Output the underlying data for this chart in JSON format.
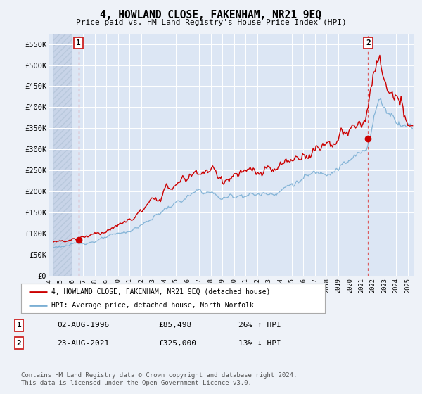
{
  "title": "4, HOWLAND CLOSE, FAKENHAM, NR21 9EQ",
  "subtitle": "Price paid vs. HM Land Registry's House Price Index (HPI)",
  "background_color": "#eef2f8",
  "plot_bg_color": "#dce6f4",
  "hatch_bg_color": "#c8d4e8",
  "grid_color": "#ffffff",
  "ylim": [
    0,
    575000
  ],
  "yticks": [
    0,
    50000,
    100000,
    150000,
    200000,
    250000,
    300000,
    350000,
    400000,
    450000,
    500000,
    550000
  ],
  "ytick_labels": [
    "£0",
    "£50K",
    "£100K",
    "£150K",
    "£200K",
    "£250K",
    "£300K",
    "£350K",
    "£400K",
    "£450K",
    "£500K",
    "£550K"
  ],
  "xlim_start": 1994.42,
  "xlim_end": 2025.5,
  "xtick_years": [
    1994,
    1995,
    1996,
    1997,
    1998,
    1999,
    2000,
    2001,
    2002,
    2003,
    2004,
    2005,
    2006,
    2007,
    2008,
    2009,
    2010,
    2011,
    2012,
    2013,
    2014,
    2015,
    2016,
    2017,
    2018,
    2019,
    2020,
    2021,
    2022,
    2023,
    2024,
    2025
  ],
  "line1_color": "#cc0000",
  "line2_color": "#7bafd4",
  "legend_label1": "4, HOWLAND CLOSE, FAKENHAM, NR21 9EQ (detached house)",
  "legend_label2": "HPI: Average price, detached house, North Norfolk",
  "note1_num": "1",
  "note1_date": "02-AUG-1996",
  "note1_price": "£85,498",
  "note1_hpi": "26% ↑ HPI",
  "note2_num": "2",
  "note2_date": "23-AUG-2021",
  "note2_price": "£325,000",
  "note2_hpi": "13% ↓ HPI",
  "footer": "Contains HM Land Registry data © Crown copyright and database right 2024.\nThis data is licensed under the Open Government Licence v3.0.",
  "sale1_x": 1996.58,
  "sale1_y": 85498,
  "sale2_x": 2021.58,
  "sale2_y": 325000,
  "hatch_x_end": 1996.0
}
